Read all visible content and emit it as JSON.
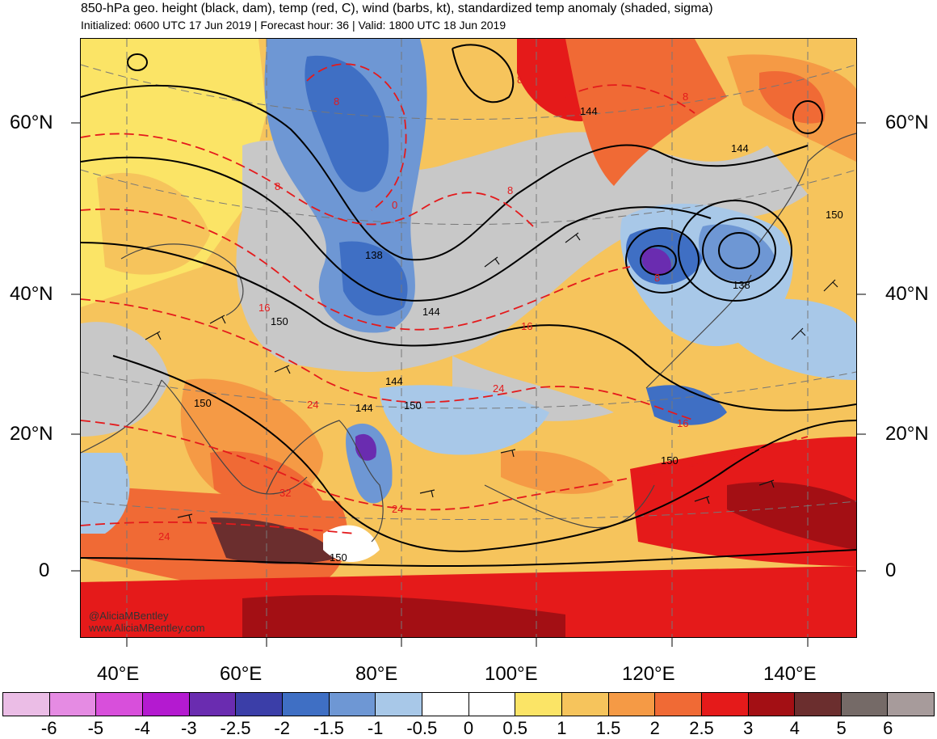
{
  "header": {
    "title": "850-hPa geo. height (black, dam), temp (red, C), wind (barbs, kt), standardized temp anomaly (shaded, sigma)",
    "subtitle": "Initialized: 0600 UTC 17 Jun 2019 | Forecast hour: 36 | Valid: 1800 UTC 18 Jun 2019"
  },
  "map": {
    "region": "Asia",
    "lat_labels_left": [
      "60°N",
      "40°N",
      "20°N",
      "0"
    ],
    "lat_labels_right": [
      "60°N",
      "40°N",
      "20°N",
      "0"
    ],
    "lon_labels": [
      "40°E",
      "60°E",
      "80°E",
      "100°E",
      "120°E",
      "140°E"
    ],
    "height_contour_labels": [
      "144",
      "144",
      "138",
      "144",
      "150",
      "150",
      "144",
      "144",
      "150",
      "150",
      "150",
      "138",
      "150"
    ],
    "temp_contour_labels": [
      "8",
      "8",
      "0",
      "8",
      "8",
      "16",
      "8",
      "16",
      "24",
      "24",
      "24",
      "24",
      "16",
      "32",
      "8"
    ]
  },
  "credits": {
    "handle": "@AliciaMBentley",
    "website": "www.AliciaMBentley.com"
  },
  "colorbar": {
    "swatches": [
      "#ebbde6",
      "#e58be3",
      "#d84fdb",
      "#b41ad0",
      "#6a2cb0",
      "#3b3ea8",
      "#3f6fc4",
      "#6e97d4",
      "#a8c8e8",
      "#ffffff",
      "#ffffff",
      "#fbe466",
      "#f6c45c",
      "#f59a45",
      "#f06a35",
      "#e51a1a",
      "#a30f14",
      "#6b2e2e",
      "#756a67",
      "#a79b9b"
    ],
    "ticks": [
      "-6",
      "-5",
      "-4",
      "-3",
      "-2.5",
      "-2",
      "-1.5",
      "-1",
      "-0.5",
      "0",
      "0.5",
      "1",
      "1.5",
      "2",
      "2.5",
      "3",
      "4",
      "5",
      "6"
    ]
  },
  "colors": {
    "height_contour": "#000000",
    "temp_contour": "#e41a1c",
    "neutral_gray": "#c8c8c8"
  }
}
